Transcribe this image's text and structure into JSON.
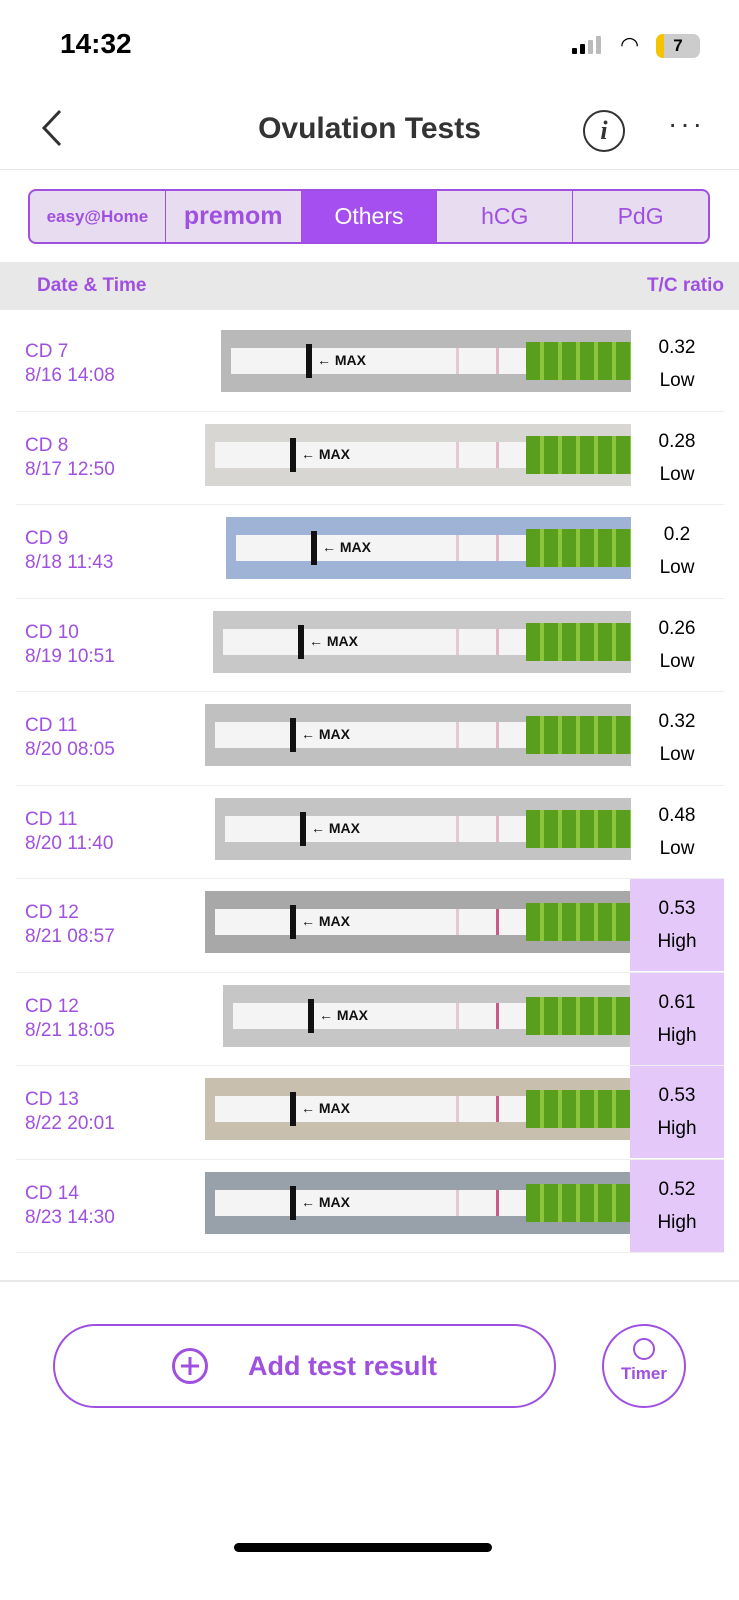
{
  "status": {
    "time": "14:32",
    "battery": "7"
  },
  "nav": {
    "title": "Ovulation Tests",
    "info_glyph": "i",
    "more_glyph": "···"
  },
  "tabs": [
    {
      "label": "easy@Home"
    },
    {
      "label": "premom"
    },
    {
      "label": "Others"
    },
    {
      "label": "hCG"
    },
    {
      "label": "PdG"
    }
  ],
  "table": {
    "col_date": "Date & Time",
    "col_ratio": "T/C ratio",
    "strip_label": "← MAX",
    "rows": [
      {
        "cd": "CD 7",
        "date": "8/16 14:08",
        "ratio": "0.32",
        "level": "Low"
      },
      {
        "cd": "CD 8",
        "date": "8/17 12:50",
        "ratio": "0.28",
        "level": "Low"
      },
      {
        "cd": "CD 9",
        "date": "8/18 11:43",
        "ratio": "0.2",
        "level": "Low"
      },
      {
        "cd": "CD 10",
        "date": "8/19 10:51",
        "ratio": "0.26",
        "level": "Low"
      },
      {
        "cd": "CD 11",
        "date": "8/20 08:05",
        "ratio": "0.32",
        "level": "Low"
      },
      {
        "cd": "CD 11",
        "date": "8/20 11:40",
        "ratio": "0.48",
        "level": "Low"
      },
      {
        "cd": "CD 12",
        "date": "8/21 08:57",
        "ratio": "0.53",
        "level": "High"
      },
      {
        "cd": "CD 12",
        "date": "8/21 18:05",
        "ratio": "0.61",
        "level": "High"
      },
      {
        "cd": "CD 13",
        "date": "8/22 20:01",
        "ratio": "0.53",
        "level": "High"
      },
      {
        "cd": "CD 14",
        "date": "8/23 14:30",
        "ratio": "0.52",
        "level": "High"
      }
    ]
  },
  "actions": {
    "add_label": "Add test result",
    "timer_label": "Timer"
  },
  "colors": {
    "accent": "#a050e0",
    "high_bg": "#e4c8fa"
  }
}
